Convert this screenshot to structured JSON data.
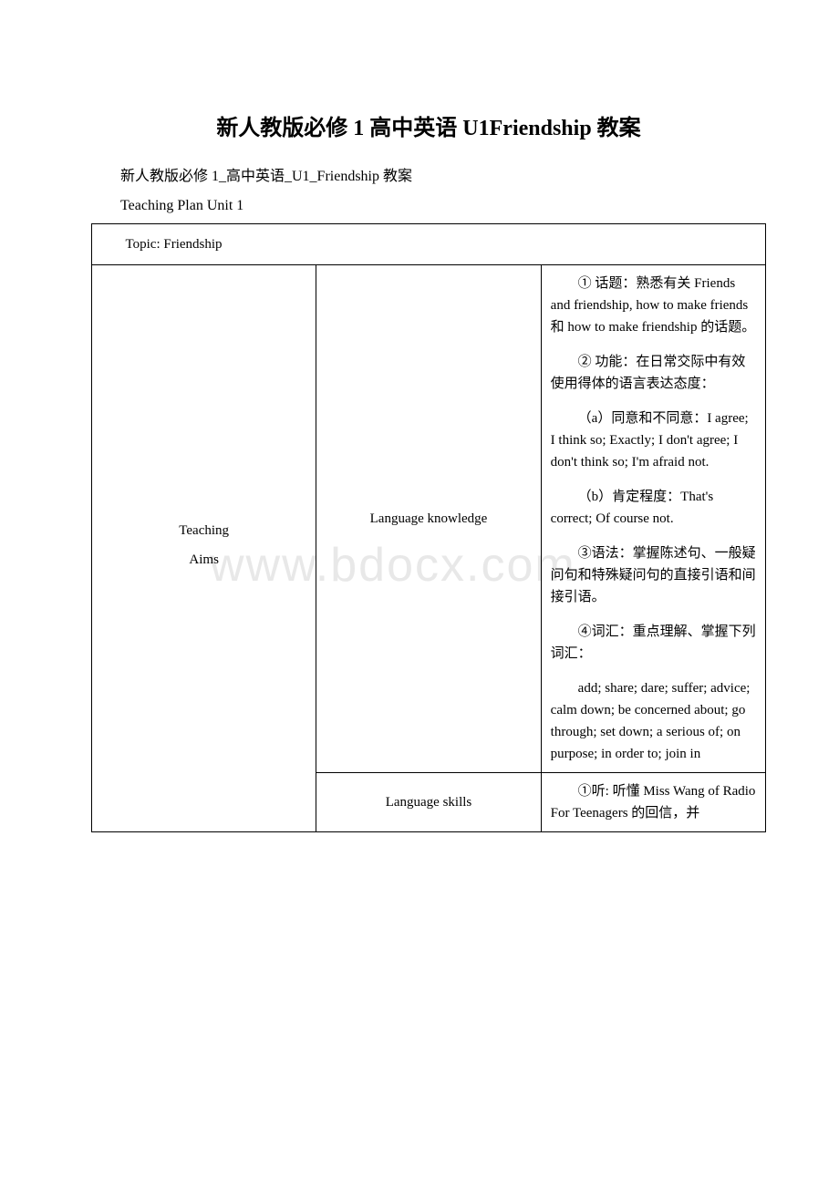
{
  "watermark": "www.bdocx.com",
  "title": "新人教版必修 1 高中英语 U1Friendship 教案",
  "intro": "新人教版必修 1_高中英语_U1_Friendship 教案",
  "teaching_plan": "Teaching Plan Unit 1",
  "topic": "Topic: Friendship",
  "aims_label_1": "Teaching",
  "aims_label_2": "Aims",
  "language_knowledge_label": "Language knowledge",
  "language_skills_label": "Language skills",
  "lk": {
    "p1": "① 话题：熟悉有关 Friends and friendship, how to make friends 和 how to make friendship 的话题。",
    "p2": "② 功能：在日常交际中有效使用得体的语言表达态度：",
    "p3": "（a）同意和不同意：I agree; I think so; Exactly; I don't agree; I don't think so; I'm afraid not.",
    "p4": "（b）肯定程度：That's correct; Of course not.",
    "p5": "③语法：掌握陈述句、一般疑问句和特殊疑问句的直接引语和间接引语。",
    "p6": "④词汇：重点理解、掌握下列词汇：",
    "p7": "add; share; dare; suffer; advice; calm down; be concerned about; go through; set down; a serious of; on purpose; in order to; join in"
  },
  "ls": {
    "p1": "①听: 听懂 Miss Wang of Radio For Teenagers 的回信，并"
  },
  "styles": {
    "background_color": "#ffffff",
    "border_color": "#000000",
    "watermark_color": "#e8e8e8",
    "title_fontsize": 24,
    "body_fontsize": 15
  }
}
